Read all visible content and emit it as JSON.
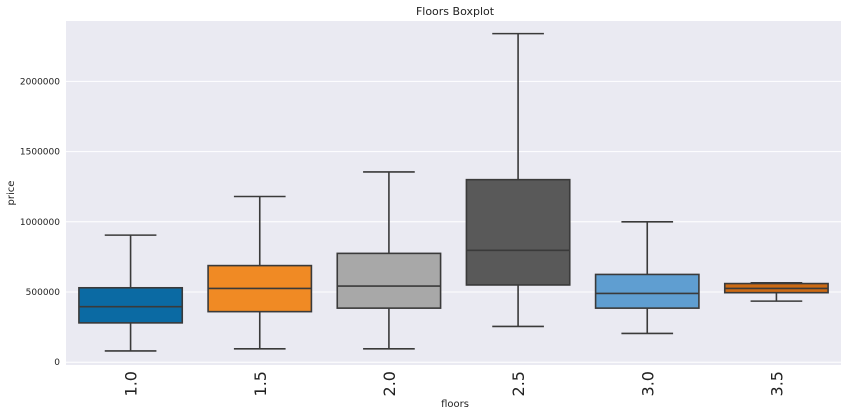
{
  "chart_data": {
    "type": "boxplot",
    "title": "Floors Boxplot",
    "xlabel": "floors",
    "ylabel": "price",
    "categories": [
      "1.0",
      "1.5",
      "2.0",
      "2.5",
      "3.0",
      "3.5"
    ],
    "colors": [
      "#0b6aa3",
      "#f08a24",
      "#a8a8a8",
      "#595959",
      "#5f9ed1",
      "#cc6a14"
    ],
    "boxes": [
      {
        "whisker_low": 80000,
        "q1": 280000,
        "median": 395000,
        "q3": 530000,
        "whisker_high": 905000
      },
      {
        "whisker_low": 95000,
        "q1": 360000,
        "median": 525000,
        "q3": 688000,
        "whisker_high": 1180000
      },
      {
        "whisker_low": 95000,
        "q1": 385000,
        "median": 542000,
        "q3": 775000,
        "whisker_high": 1355000
      },
      {
        "whisker_low": 255000,
        "q1": 550000,
        "median": 797000,
        "q3": 1300000,
        "whisker_high": 2340000
      },
      {
        "whisker_low": 205000,
        "q1": 385000,
        "median": 490000,
        "q3": 625000,
        "whisker_high": 1000000
      },
      {
        "whisker_low": 435000,
        "q1": 495000,
        "median": 525000,
        "q3": 560000,
        "whisker_high": 565000
      }
    ],
    "yticks": [
      "0",
      "500000",
      "1000000",
      "1500000",
      "2000000"
    ],
    "ytick_values": [
      0,
      500000,
      1000000,
      1500000,
      2000000
    ],
    "ylim": [
      -20000,
      2430000
    ],
    "grid": true,
    "background": "#eaeaf2"
  }
}
